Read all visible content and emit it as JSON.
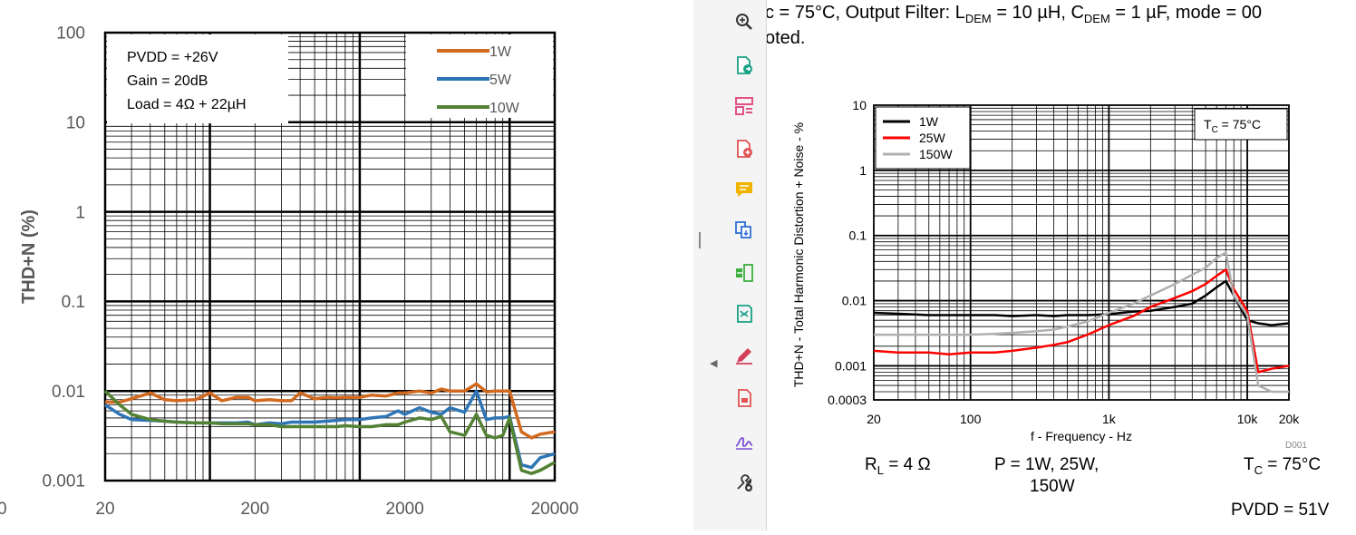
{
  "chart_data": [
    {
      "type": "line",
      "ylabel": "THD+N (%)",
      "xlabel": "",
      "xscale": "log",
      "yscale": "log",
      "xlim": [
        20,
        20000
      ],
      "ylim": [
        0.001,
        100
      ],
      "x_ticks": [
        "20",
        "200",
        "2000",
        "20000"
      ],
      "y_ticks": [
        "0.001",
        "0.01",
        "0.1",
        "1",
        "10",
        "100"
      ],
      "annotation_lines": [
        "PVDD = +26V",
        "Gain = 20dB",
        "Load = 4Ω + 22µH"
      ],
      "legend": "top-right",
      "series": [
        {
          "name": "1W",
          "color": "#d2691e",
          "x": [
            20,
            25,
            30,
            40,
            50,
            60,
            80,
            100,
            120,
            150,
            180,
            200,
            250,
            300,
            350,
            400,
            500,
            600,
            700,
            800,
            1000,
            1200,
            1500,
            1800,
            2000,
            2500,
            3000,
            3500,
            4000,
            5000,
            6000,
            7000,
            8000,
            9000,
            10000,
            12000,
            14000,
            16000,
            20000
          ],
          "y": [
            0.0075,
            0.0075,
            0.0082,
            0.0095,
            0.008,
            0.0078,
            0.008,
            0.0095,
            0.0078,
            0.0085,
            0.0085,
            0.0078,
            0.008,
            0.0078,
            0.0078,
            0.0095,
            0.0082,
            0.0085,
            0.0084,
            0.0085,
            0.0085,
            0.009,
            0.0088,
            0.0095,
            0.0095,
            0.01,
            0.0095,
            0.0105,
            0.01,
            0.01,
            0.012,
            0.0098,
            0.01,
            0.01,
            0.01,
            0.0035,
            0.003,
            0.0033,
            0.0035
          ]
        },
        {
          "name": "5W",
          "color": "#2e75b6",
          "x": [
            20,
            25,
            30,
            40,
            50,
            60,
            80,
            100,
            120,
            150,
            180,
            200,
            250,
            300,
            350,
            400,
            500,
            600,
            700,
            800,
            1000,
            1200,
            1500,
            1800,
            2000,
            2500,
            3000,
            3500,
            4000,
            5000,
            6000,
            7000,
            8000,
            9000,
            10000,
            12000,
            14000,
            16000,
            20000
          ],
          "y": [
            0.007,
            0.0055,
            0.0048,
            0.0047,
            0.0046,
            0.0045,
            0.0044,
            0.0044,
            0.0044,
            0.0044,
            0.0045,
            0.0042,
            0.0044,
            0.0043,
            0.0045,
            0.0045,
            0.0045,
            0.0046,
            0.0047,
            0.0048,
            0.0048,
            0.005,
            0.0052,
            0.006,
            0.0055,
            0.0065,
            0.0058,
            0.0055,
            0.0065,
            0.0058,
            0.01,
            0.0048,
            0.005,
            0.005,
            0.0052,
            0.0015,
            0.0014,
            0.0018,
            0.002
          ]
        },
        {
          "name": "10W",
          "color": "#548235",
          "x": [
            20,
            25,
            30,
            40,
            50,
            60,
            80,
            100,
            120,
            150,
            180,
            200,
            250,
            300,
            350,
            400,
            500,
            600,
            700,
            800,
            1000,
            1200,
            1500,
            1800,
            2000,
            2500,
            3000,
            3500,
            4000,
            5000,
            6000,
            7000,
            8000,
            9000,
            10000,
            12000,
            14000,
            16000,
            20000
          ],
          "y": [
            0.01,
            0.007,
            0.0055,
            0.0048,
            0.0046,
            0.0045,
            0.0044,
            0.0044,
            0.0043,
            0.0043,
            0.0043,
            0.0042,
            0.0042,
            0.004,
            0.004,
            0.004,
            0.004,
            0.004,
            0.004,
            0.0041,
            0.004,
            0.004,
            0.0042,
            0.0042,
            0.0045,
            0.005,
            0.0048,
            0.0052,
            0.0035,
            0.0032,
            0.0055,
            0.0032,
            0.003,
            0.0032,
            0.005,
            0.0013,
            0.0012,
            0.0013,
            0.0016
          ]
        }
      ]
    },
    {
      "type": "line",
      "ylabel": "THD+N - Total Harmonic Distortion + Noise - %",
      "xlabel": "f - Frequency - Hz",
      "xscale": "log",
      "yscale": "log",
      "xlim": [
        20,
        20000
      ],
      "ylim": [
        0.0003,
        10
      ],
      "x_ticks": [
        "20",
        "100",
        "1k",
        "10k",
        "20k"
      ],
      "y_ticks": [
        "0.0003",
        "0.001",
        "0.01",
        "0.1",
        "1",
        "10"
      ],
      "annotation": "TC = 75°C",
      "corner_code": "D001",
      "legend": "top-left",
      "series": [
        {
          "name": "1W",
          "color": "#000000",
          "x": [
            20,
            30,
            50,
            70,
            100,
            150,
            200,
            300,
            400,
            500,
            700,
            1000,
            1500,
            2000,
            3000,
            4000,
            5000,
            6000,
            7000,
            8000,
            10000,
            12000,
            15000,
            20000
          ],
          "y": [
            0.0065,
            0.0063,
            0.006,
            0.006,
            0.006,
            0.006,
            0.0058,
            0.006,
            0.0058,
            0.006,
            0.006,
            0.0062,
            0.0068,
            0.007,
            0.008,
            0.009,
            0.012,
            0.016,
            0.02,
            0.012,
            0.005,
            0.0045,
            0.0042,
            0.0045
          ]
        },
        {
          "name": "25W",
          "color": "#ff0000",
          "x": [
            20,
            30,
            50,
            70,
            100,
            150,
            200,
            300,
            400,
            500,
            700,
            1000,
            1500,
            2000,
            3000,
            4000,
            5000,
            6000,
            7000,
            8000,
            10000,
            12000,
            15000,
            20000
          ],
          "y": [
            0.0017,
            0.0016,
            0.0016,
            0.0015,
            0.0016,
            0.0016,
            0.0017,
            0.0019,
            0.0021,
            0.0023,
            0.003,
            0.0042,
            0.0058,
            0.008,
            0.011,
            0.014,
            0.018,
            0.024,
            0.03,
            0.015,
            0.007,
            0.0008,
            0.0009,
            0.001
          ]
        },
        {
          "name": "150W",
          "color": "#b0b0b0",
          "x": [
            20,
            30,
            50,
            70,
            100,
            150,
            200,
            300,
            400,
            500,
            700,
            1000,
            1500,
            2000,
            3000,
            4000,
            5000,
            6000,
            7000,
            8000,
            10000,
            12000,
            15000,
            20000
          ],
          "y": [
            0.003,
            0.003,
            0.003,
            0.003,
            0.003,
            0.0031,
            0.0032,
            0.0034,
            0.0036,
            0.004,
            0.0048,
            0.0065,
            0.009,
            0.012,
            0.018,
            0.025,
            0.032,
            0.045,
            0.055,
            0.012,
            0.006,
            0.0005,
            0.0004,
            0.0004
          ]
        }
      ]
    }
  ],
  "document": {
    "header_line1": "c = 75°C, Output Filter: L",
    "header_sub1": "DEM",
    "header_mid1": " = 10 µH, C",
    "header_sub2": "DEM",
    "header_mid2": " = 1 µF, mode = 00",
    "header_line2": "oted.",
    "tc_label": "T",
    "tc_sub": "C",
    "tc_value": " = 75°C",
    "rl_label": "R",
    "rl_sub": "L",
    "rl_value": " = 4 Ω",
    "power_line1": "P = 1W, 25W,",
    "power_line2": "150W",
    "tc_bottom": " = 75°C",
    "pvdd": "PVDD = 51V"
  },
  "toolbar": {
    "icons": [
      "zoom-icon",
      "export-pdf-icon",
      "organize-pages-icon",
      "create-pdf-icon",
      "comment-icon",
      "combine-files-icon",
      "extract-pages-icon",
      "compress-icon",
      "fill-sign-icon",
      "edit-pdf-icon",
      "sign-icon",
      "more-tools-icon"
    ],
    "colors": {
      "zoom": "#333333",
      "export": "#16a085",
      "organize": "#e0407b",
      "create": "#e05252",
      "comment": "#f0b400",
      "combine": "#2f6fd6",
      "extract": "#3fae3f",
      "compress": "#16a085",
      "fill": "#d63f5a",
      "edit": "#e05252",
      "sign": "#7b4fd6",
      "more": "#333333"
    }
  }
}
